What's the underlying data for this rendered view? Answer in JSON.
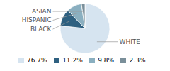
{
  "chart_data": {
    "type": "pie",
    "categories": [
      "WHITE",
      "BLACK",
      "HISPANIC",
      "ASIAN"
    ],
    "values": [
      76.7,
      11.2,
      9.8,
      2.3
    ],
    "colors": [
      "#d6e4f0",
      "#2e6080",
      "#8aafc0",
      "#7a8f9a"
    ],
    "value_labels": [
      "76.7%",
      "11.2%",
      "9.8%",
      "2.3%"
    ],
    "legend": "bottom"
  }
}
